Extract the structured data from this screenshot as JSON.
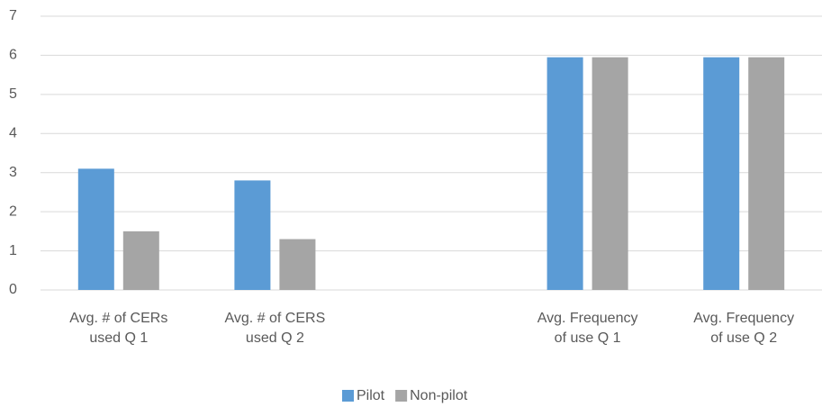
{
  "chart_data": {
    "type": "bar",
    "categories": [
      "Avg. # of CERs used Q 1",
      "Avg. # of CERS used Q 2",
      null,
      "Avg. Frequency of use Q 1",
      "Avg. Frequency of use Q 2"
    ],
    "series": [
      {
        "name": "Pilot",
        "color": "#5b9bd5",
        "values": [
          3.1,
          2.8,
          null,
          5.95,
          5.95
        ]
      },
      {
        "name": "Non-pilot",
        "color": "#a5a5a5",
        "values": [
          1.5,
          1.3,
          null,
          5.95,
          5.95
        ]
      }
    ],
    "ylim": [
      0,
      7
    ],
    "yticks": [
      0,
      1,
      2,
      3,
      4,
      5,
      6,
      7
    ],
    "grid": true,
    "legend": "bottom"
  }
}
